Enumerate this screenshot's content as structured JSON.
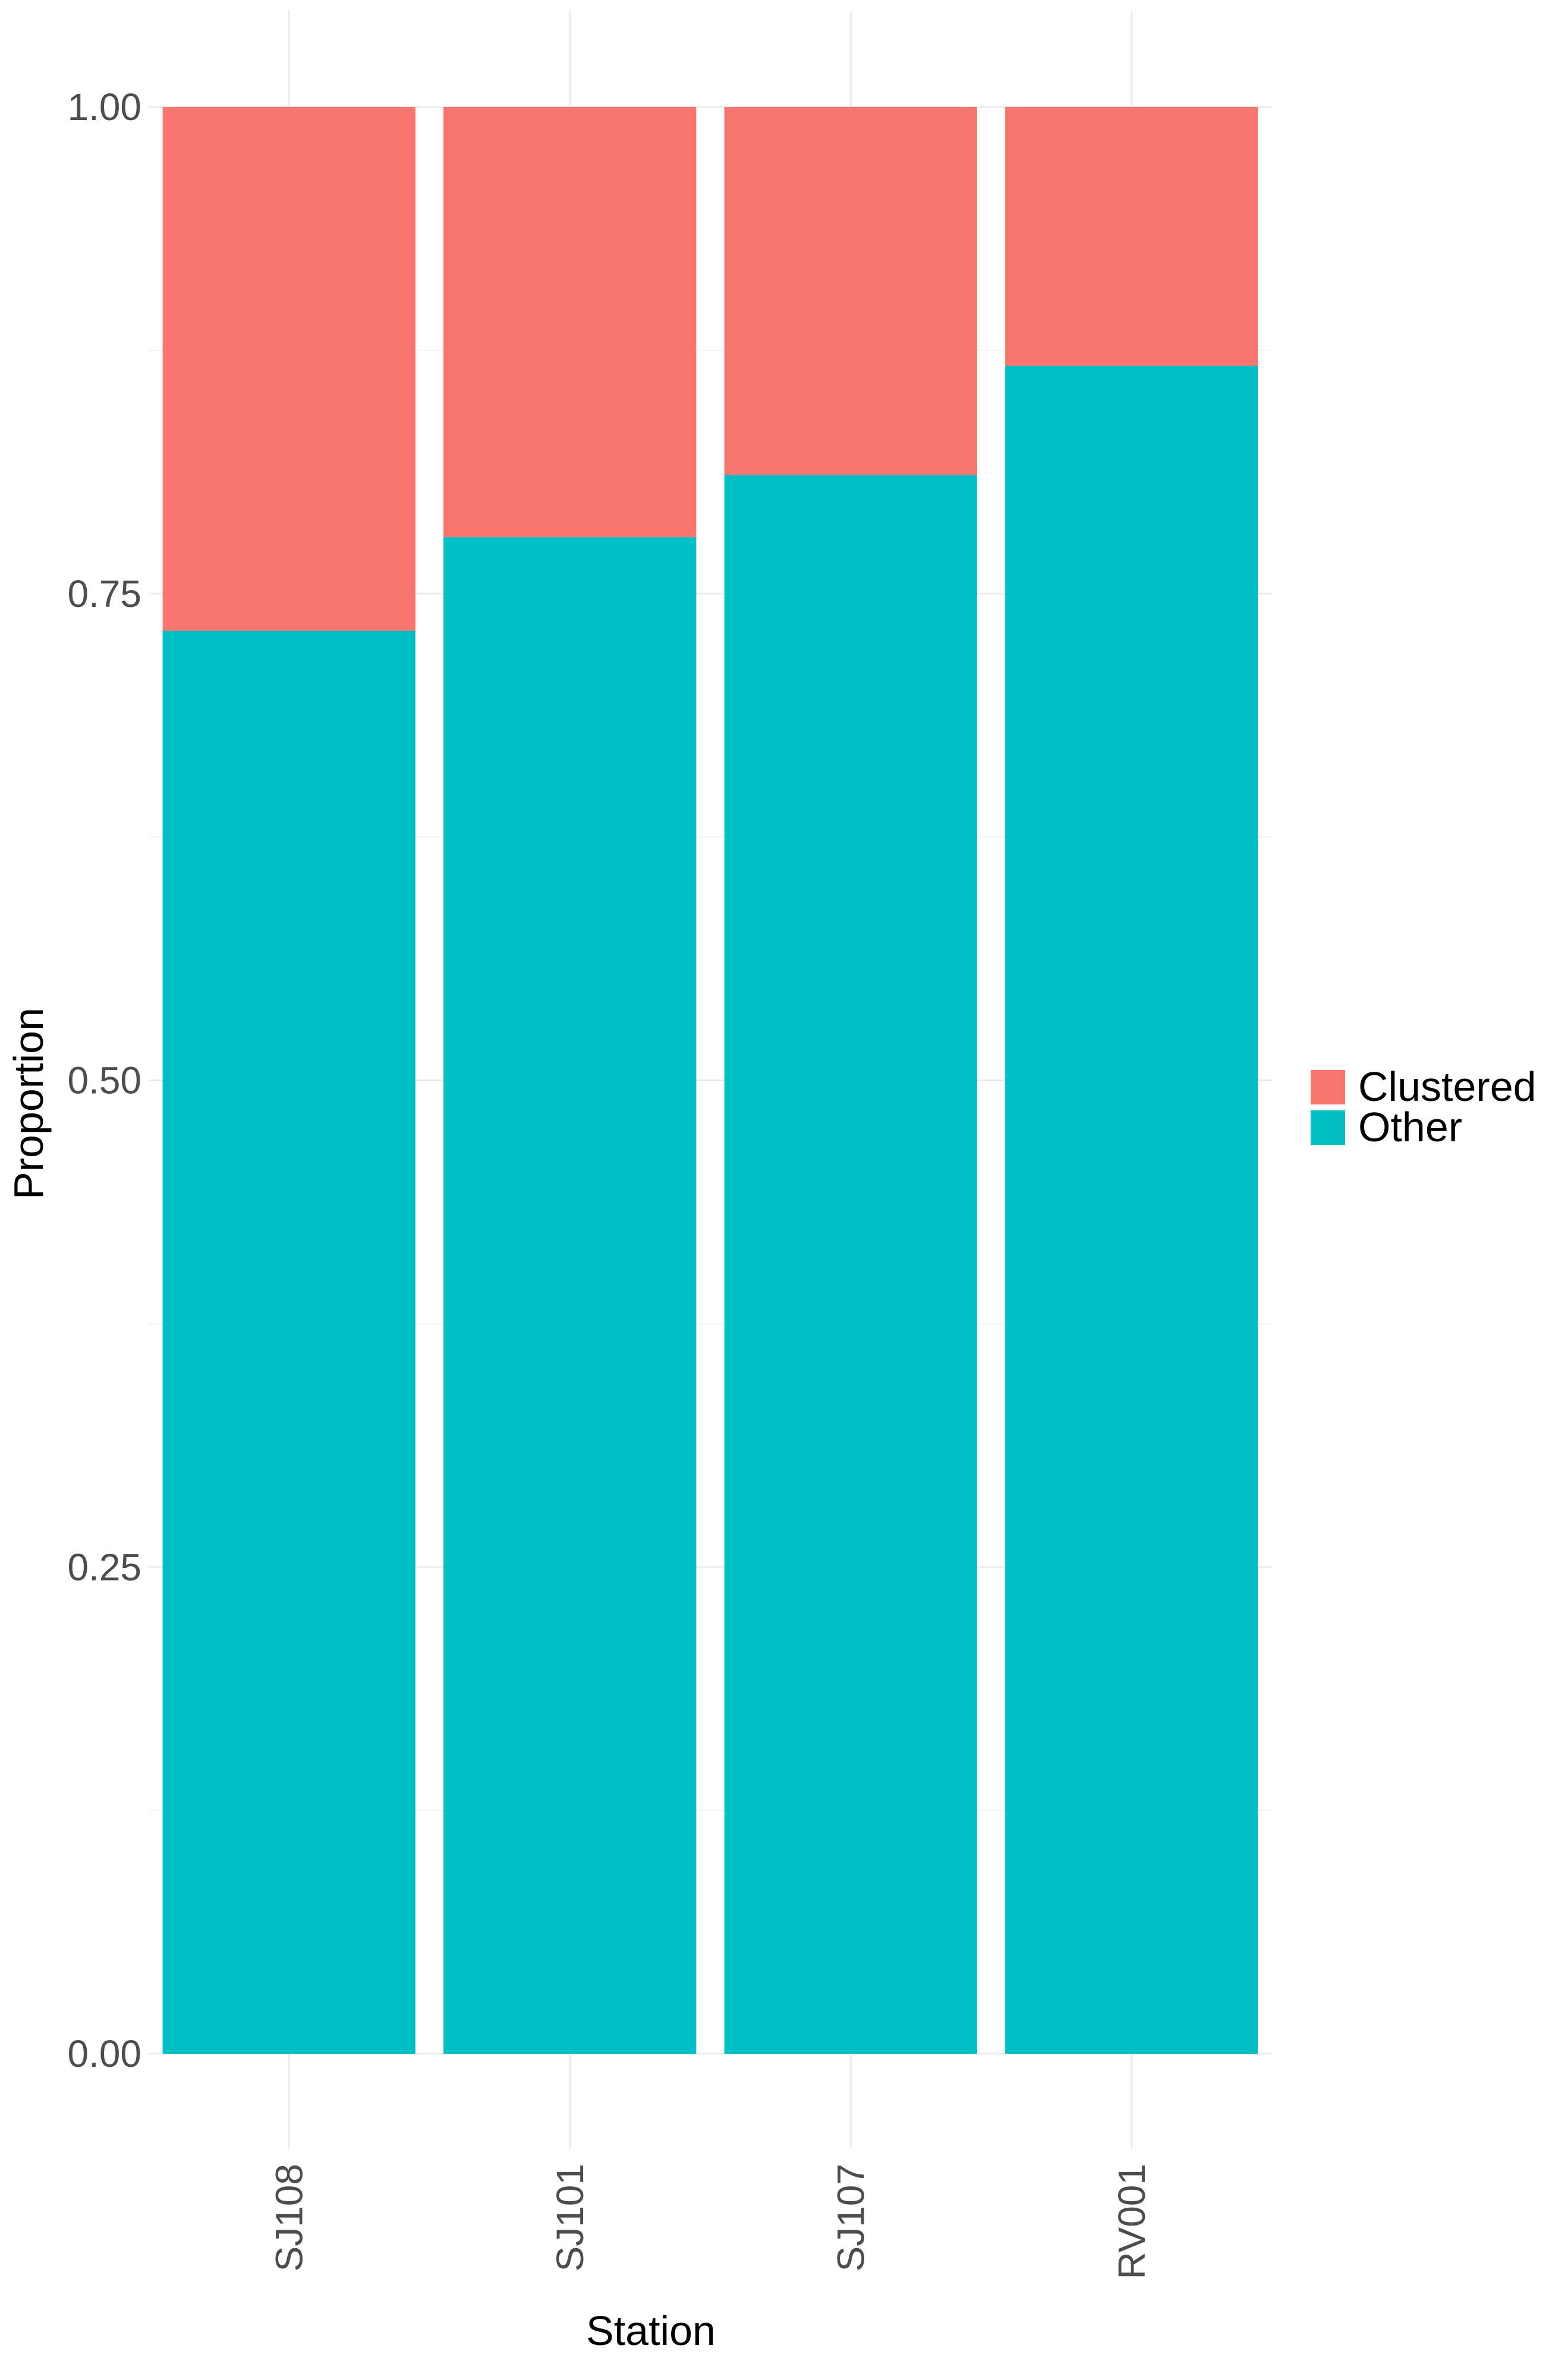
{
  "chart_data": {
    "type": "bar",
    "stacked": true,
    "xlabel": "Station",
    "ylabel": "Proportion",
    "categories": [
      "SJ108",
      "SJ101",
      "SJ107",
      "RV001"
    ],
    "series": [
      {
        "name": "Other",
        "color": "#00BFC4",
        "values": [
          0.731,
          0.779,
          0.811,
          0.867
        ]
      },
      {
        "name": "Clustered",
        "color": "#F8766D",
        "values": [
          0.269,
          0.221,
          0.189,
          0.133
        ]
      }
    ],
    "ylim": [
      0,
      1
    ],
    "yticks": [
      "0.00",
      "0.25",
      "0.50",
      "0.75",
      "1.00"
    ],
    "grid": true,
    "legend": {
      "position": "right",
      "entries": [
        {
          "label": "Clustered",
          "color": "#F8766D"
        },
        {
          "label": "Other",
          "color": "#00BFC4"
        }
      ]
    }
  }
}
